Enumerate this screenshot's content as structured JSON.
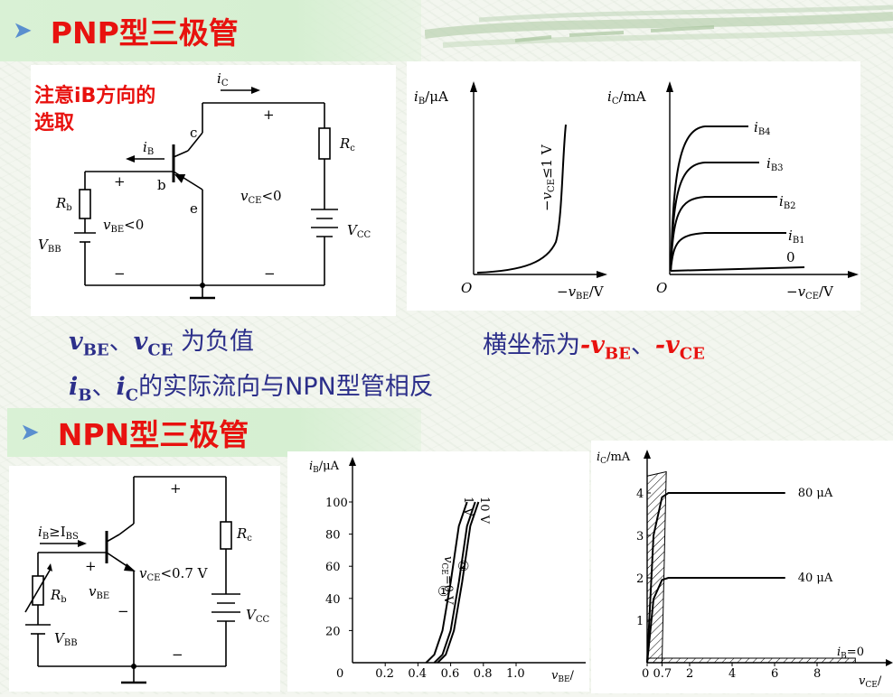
{
  "slide": {
    "pnp": {
      "title": "PNP型三极管",
      "note_line1": "注意iB方向的",
      "note_line2": "选取",
      "circuit_labels": {
        "ic": "i",
        "ic_sub": "C",
        "ib": "i",
        "ib_sub": "B",
        "c": "c",
        "b": "b",
        "e": "e",
        "rc": "R",
        "rc_sub": "c",
        "rb": "R",
        "rb_sub": "b",
        "vbb": "V",
        "vbb_sub": "BB",
        "vcc": "V",
        "vcc_sub": "CC",
        "vce": "v",
        "vce_sub": "CE",
        "vce_rel": "<0",
        "vbe": "v",
        "vbe_sub": "BE",
        "vbe_rel": "<0",
        "plus": "+",
        "minus": "−"
      },
      "input_chart_labels": {
        "ylabel": "i",
        "ylabel_sub": "B",
        "ylabel_unit": "/μA",
        "xlabel": "−v",
        "xlabel_sub": "BE",
        "xlabel_unit": "/V",
        "origin": "O",
        "curve_label": "−v",
        "curve_label_sub": "CE",
        "curve_label_rel": "≤1 V"
      },
      "output_chart_labels": {
        "ylabel": "i",
        "ylabel_sub": "C",
        "ylabel_unit": "/mA",
        "xlabel": "−v",
        "xlabel_sub": "CE",
        "xlabel_unit": "/V",
        "origin": "O",
        "curves": [
          "i",
          "i",
          "i",
          "i",
          "0"
        ],
        "curve_subs": [
          "B4",
          "B3",
          "B2",
          "B1",
          ""
        ]
      },
      "text1_a": "v",
      "text1_a_sub": "BE",
      "text1_sep": "、",
      "text1_b": "v",
      "text1_b_sub": "CE",
      "text1_tail": " 为负值",
      "text2_head": "横坐标为",
      "text2_a": "-v",
      "text2_a_sub": "BE",
      "text2_sep": "、",
      "text2_b": "-v",
      "text2_b_sub": "CE",
      "text3_a": "i",
      "text3_a_sub": "B",
      "text3_sep": "、",
      "text3_b": "i",
      "text3_b_sub": "C",
      "text3_tail": "的实际流向与NPN型管相反"
    },
    "npn": {
      "title": "NPN型三极管",
      "circuit_labels": {
        "ib_cond": "i",
        "ib_cond_sub": "B",
        "ib_cond_rel": "≥I",
        "ib_cond_sub2": "BS",
        "rc": "R",
        "rc_sub": "c",
        "rb": "R",
        "rb_sub": "b",
        "vbb": "V",
        "vbb_sub": "BB",
        "vcc": "V",
        "vcc_sub": "CC",
        "vbe": "v",
        "vbe_sub": "BE",
        "vce": "v",
        "vce_sub": "CE",
        "vce_rel": "<0.7 V",
        "plus": "+",
        "minus": "−"
      },
      "input_chart": {
        "ylabel": "i",
        "ylabel_sub": "B",
        "ylabel_unit": "/μA",
        "xlabel": "v",
        "xlabel_sub": "BE",
        "xlabel_unit": "/",
        "yticks": [
          "100",
          "80",
          "60",
          "40",
          "20",
          "0"
        ],
        "xticks": [
          "0.2",
          "0.4",
          "0.6",
          "0.8",
          "1.0"
        ],
        "curve_labels": [
          "v",
          "CE",
          "=0 V",
          "1 V",
          "10 V"
        ],
        "markers": [
          "①",
          "②"
        ]
      },
      "output_chart": {
        "ylabel": "i",
        "ylabel_sub": "C",
        "ylabel_unit": "/mA",
        "xlabel": "v",
        "xlabel_sub": "CE",
        "xlabel_unit": "/",
        "yticks": [
          "4",
          "3",
          "2",
          "1"
        ],
        "xticks": [
          "0",
          "0.7",
          "2",
          "4",
          "6",
          "8"
        ],
        "curve_labels": [
          "80 μA",
          "40 μA"
        ],
        "ib0_label": "i",
        "ib0_sub": "B",
        "ib0_tail": "=0"
      }
    }
  },
  "chart_data": [
    {
      "type": "line",
      "title": "",
      "xlabel": "v_BE / V",
      "ylabel": "i_B / μA",
      "xlim": [
        0,
        1.1
      ],
      "ylim": [
        0,
        110
      ],
      "x_ticks": [
        0.2,
        0.4,
        0.6,
        0.8,
        1.0
      ],
      "y_ticks": [
        20,
        40,
        60,
        80,
        100
      ],
      "series": [
        {
          "name": "v_CE=0 V",
          "x": [
            0.45,
            0.5,
            0.55,
            0.6,
            0.65,
            0.7
          ],
          "y": [
            0,
            5,
            20,
            50,
            85,
            100
          ]
        },
        {
          "name": "1 V",
          "x": [
            0.5,
            0.55,
            0.6,
            0.65,
            0.7,
            0.75
          ],
          "y": [
            0,
            5,
            20,
            50,
            85,
            100
          ]
        },
        {
          "name": "10 V",
          "x": [
            0.52,
            0.57,
            0.62,
            0.67,
            0.72,
            0.77
          ],
          "y": [
            0,
            5,
            20,
            50,
            85,
            100
          ]
        }
      ]
    },
    {
      "type": "line",
      "title": "",
      "xlabel": "v_CE / V",
      "ylabel": "i_C / mA",
      "xlim": [
        0,
        10
      ],
      "ylim": [
        0,
        4.5
      ],
      "x_ticks": [
        0,
        0.7,
        2,
        4,
        6,
        8
      ],
      "y_ticks": [
        1,
        2,
        3,
        4
      ],
      "series": [
        {
          "name": "80 μA",
          "x": [
            0,
            0.3,
            0.7,
            1.0,
            6.5
          ],
          "y": [
            0,
            3.0,
            3.9,
            4.0,
            4.0
          ]
        },
        {
          "name": "40 μA",
          "x": [
            0,
            0.3,
            0.7,
            1.0,
            6.5
          ],
          "y": [
            0,
            1.5,
            1.95,
            2.0,
            2.0
          ]
        },
        {
          "name": "i_B=0",
          "x": [
            0,
            10
          ],
          "y": [
            0,
            0
          ]
        }
      ]
    }
  ]
}
